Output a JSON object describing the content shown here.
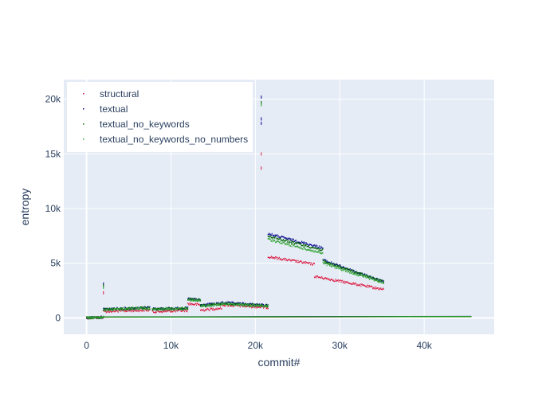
{
  "chart_data": {
    "type": "scatter",
    "xlabel": "commit#",
    "ylabel": "entropy",
    "xlim": [
      -2700,
      48300
    ],
    "ylim": [
      -1500,
      21800
    ],
    "xticks": [
      0,
      10000,
      20000,
      30000,
      40000
    ],
    "xtick_labels": [
      "0",
      "10k",
      "20k",
      "30k",
      "40k"
    ],
    "yticks": [
      0,
      5000,
      10000,
      15000,
      20000
    ],
    "ytick_labels": [
      "0",
      "5k",
      "10k",
      "15k",
      "20k"
    ],
    "grid": true,
    "legend_position": "top-left",
    "background": "#e5ecf6",
    "series": [
      {
        "name": "structural",
        "color": "#dc143c",
        "segments": [
          {
            "x": [
              0,
              2000
            ],
            "y": [
              0,
              60
            ]
          },
          {
            "x": [
              2000,
              7500
            ],
            "y": [
              580,
              720
            ]
          },
          {
            "x": [
              7800,
              12000
            ],
            "y": [
              560,
              680
            ]
          },
          {
            "x": [
              12000,
              13500
            ],
            "y": [
              1300,
              1200
            ]
          },
          {
            "x": [
              13500,
              16000
            ],
            "y": [
              700,
              900
            ]
          },
          {
            "x": [
              16000,
              21500
            ],
            "y": [
              1200,
              950
            ]
          },
          {
            "x": [
              21500,
              27000
            ],
            "y": [
              5600,
              4900
            ]
          },
          {
            "x": [
              27000,
              35200
            ],
            "y": [
              3800,
              2600
            ]
          }
        ],
        "outliers": [
          {
            "x": 2000,
            "y": 2300
          },
          {
            "x": 20700,
            "y": 13700
          },
          {
            "x": 20700,
            "y": 15000
          }
        ],
        "baseline": {
          "x": [
            0,
            45600
          ],
          "y": [
            60,
            120
          ]
        }
      },
      {
        "name": "textual",
        "color": "#00008b",
        "segments": [
          {
            "x": [
              0,
              2000
            ],
            "y": [
              0,
              80
            ]
          },
          {
            "x": [
              2000,
              7500
            ],
            "y": [
              800,
              950
            ]
          },
          {
            "x": [
              7800,
              12000
            ],
            "y": [
              820,
              900
            ]
          },
          {
            "x": [
              12000,
              13500
            ],
            "y": [
              1750,
              1650
            ]
          },
          {
            "x": [
              13500,
              16000
            ],
            "y": [
              1150,
              1350
            ]
          },
          {
            "x": [
              16000,
              21500
            ],
            "y": [
              1400,
              1150
            ]
          },
          {
            "x": [
              21500,
              28000
            ],
            "y": [
              7700,
              6400
            ]
          },
          {
            "x": [
              28000,
              35200
            ],
            "y": [
              5300,
              3300
            ]
          }
        ],
        "outliers": [
          {
            "x": 2000,
            "y": 3100
          },
          {
            "x": 20700,
            "y": 20200
          },
          {
            "x": 20700,
            "y": 18200
          },
          {
            "x": 20700,
            "y": 17800
          }
        ],
        "baseline": {
          "x": [
            0,
            45600
          ],
          "y": [
            90,
            140
          ]
        }
      },
      {
        "name": "textual_no_keywords",
        "color": "#006400",
        "segments": [
          {
            "x": [
              0,
              2000
            ],
            "y": [
              0,
              70
            ]
          },
          {
            "x": [
              2000,
              7500
            ],
            "y": [
              780,
              920
            ]
          },
          {
            "x": [
              7800,
              12000
            ],
            "y": [
              800,
              880
            ]
          },
          {
            "x": [
              12000,
              13500
            ],
            "y": [
              1700,
              1600
            ]
          },
          {
            "x": [
              13500,
              16000
            ],
            "y": [
              1100,
              1300
            ]
          },
          {
            "x": [
              16000,
              21500
            ],
            "y": [
              1350,
              1100
            ]
          },
          {
            "x": [
              21500,
              28000
            ],
            "y": [
              7500,
              6200
            ]
          },
          {
            "x": [
              28000,
              35200
            ],
            "y": [
              5200,
              3300
            ]
          }
        ],
        "outliers": [
          {
            "x": 2000,
            "y": 2950
          },
          {
            "x": 20700,
            "y": 19700
          }
        ],
        "baseline": {
          "x": [
            0,
            45600
          ],
          "y": [
            80,
            130
          ]
        }
      },
      {
        "name": "textual_no_keywords_no_numbers",
        "color": "#2ca02c",
        "segments": [
          {
            "x": [
              0,
              2000
            ],
            "y": [
              0,
              60
            ]
          },
          {
            "x": [
              2000,
              7500
            ],
            "y": [
              740,
              880
            ]
          },
          {
            "x": [
              7800,
              12000
            ],
            "y": [
              760,
              840
            ]
          },
          {
            "x": [
              12000,
              13500
            ],
            "y": [
              1650,
              1550
            ]
          },
          {
            "x": [
              13500,
              16000
            ],
            "y": [
              1050,
              1250
            ]
          },
          {
            "x": [
              16000,
              21500
            ],
            "y": [
              1300,
              1050
            ]
          },
          {
            "x": [
              21500,
              28000
            ],
            "y": [
              7200,
              5900
            ]
          },
          {
            "x": [
              28000,
              35200
            ],
            "y": [
              5000,
              3200
            ]
          }
        ],
        "outliers": [
          {
            "x": 2000,
            "y": 2800
          },
          {
            "x": 20700,
            "y": 19500
          }
        ],
        "baseline": {
          "x": [
            0,
            45600
          ],
          "y": [
            70,
            120
          ]
        }
      }
    ]
  }
}
